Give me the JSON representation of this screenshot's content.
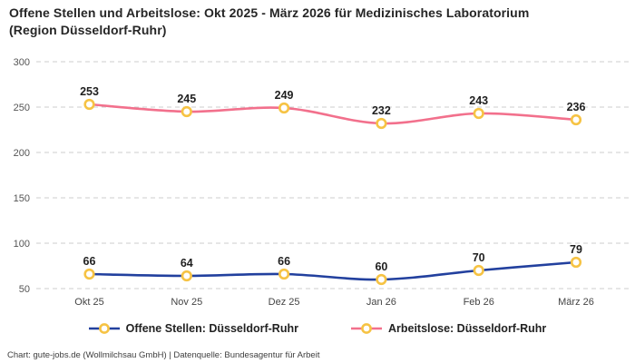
{
  "header": {
    "title": "Offene Stellen und Arbeitslose: Okt 2025 - März 2026 für Medizinisches Laboratorium (Region Düsseldorf-Ruhr)"
  },
  "footer": {
    "credit": "Chart: gute-jobs.de (Wollmilchsau GmbH) | Datenquelle: Bundesagentur für Arbeit"
  },
  "colors": {
    "background": "#ffffff",
    "title_text": "#262626",
    "grid": "#cccccc",
    "axis_text": "#555555",
    "data_label_text": "#1f1f1f",
    "marker_ring": "#f6c344",
    "marker_fill": "#ffffff"
  },
  "chart_data": {
    "type": "line",
    "title": "Offene Stellen und Arbeitslose: Okt 2025 - März 2026 für Medizinisches Laboratorium (Region Düsseldorf-Ruhr)",
    "categories": [
      "Okt 25",
      "Nov 25",
      "Dez 25",
      "Jan 26",
      "Feb 26",
      "März 26"
    ],
    "series": [
      {
        "name": "Offene Stellen: Düsseldorf-Ruhr",
        "color": "#22409e",
        "values": [
          66,
          64,
          66,
          60,
          70,
          79
        ]
      },
      {
        "name": "Arbeitslose: Düsseldorf-Ruhr",
        "color": "#f2708c",
        "values": [
          253,
          245,
          249,
          232,
          243,
          236
        ]
      }
    ],
    "xlabel": "",
    "ylabel": "",
    "ylim": [
      50,
      300
    ],
    "yticks": [
      50,
      100,
      150,
      200,
      250,
      300
    ],
    "grid": "horizontal-dashed",
    "legend_position": "bottom",
    "data_labels": true,
    "marker_style": "yellow ring, white fill"
  }
}
